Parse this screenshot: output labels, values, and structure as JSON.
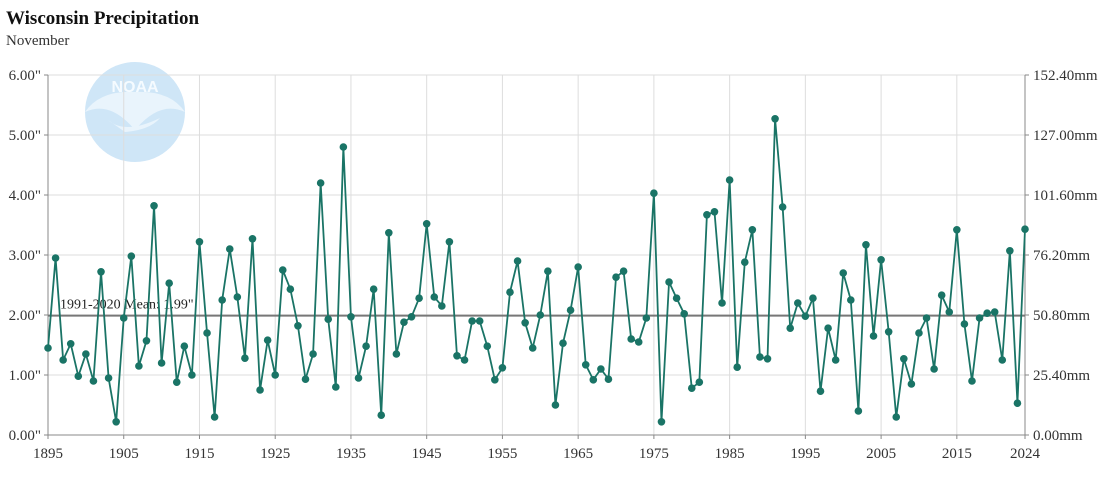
{
  "title": "Wisconsin Precipitation",
  "subtitle": "November",
  "colors": {
    "series": "#1a7466",
    "mean_line": "#777777",
    "grid": "#dddddd",
    "axis": "#888888",
    "logo_circle": "#cfe6f7",
    "logo_light": "#e9f4fc"
  },
  "logo": {
    "icon": "noaa-logo-icon",
    "text": "NOAA"
  },
  "chart_data": {
    "type": "line",
    "title": "Wisconsin Precipitation",
    "subtitle": "November",
    "x_range": [
      1895,
      2024
    ],
    "ylim": [
      0,
      6
    ],
    "grid": true,
    "left_axis": {
      "ticks": [
        0,
        1,
        2,
        3,
        4,
        5,
        6
      ],
      "tick_labels": [
        "0.00\"",
        "1.00\"",
        "2.00\"",
        "3.00\"",
        "4.00\"",
        "5.00\"",
        "6.00\""
      ]
    },
    "right_axis": {
      "tick_labels": [
        "0.00mm",
        "25.40mm",
        "50.80mm",
        "76.20mm",
        "101.60mm",
        "127.00mm",
        "152.40mm"
      ]
    },
    "x_ticks": [
      1895,
      1905,
      1915,
      1925,
      1935,
      1945,
      1955,
      1965,
      1975,
      1985,
      1995,
      2005,
      2015,
      2024
    ],
    "x_tick_labels": [
      "1895",
      "1905",
      "1915",
      "1925",
      "1935",
      "1945",
      "1955",
      "1965",
      "1975",
      "1985",
      "1995",
      "2005",
      "2015",
      "2024"
    ],
    "mean": {
      "value": 1.99,
      "label": "1991-2020 Mean: 1.99\""
    },
    "series": [
      {
        "x_start": 1895,
        "values": [
          1.45,
          2.95,
          1.25,
          1.52,
          0.98,
          1.35,
          0.9,
          2.72,
          0.95,
          0.22,
          1.95,
          2.98,
          1.15,
          1.57,
          3.82,
          1.2,
          2.53,
          0.88,
          1.48,
          1.0,
          3.22,
          1.7,
          0.3,
          2.25,
          3.1,
          2.3,
          1.28,
          3.27,
          0.75,
          1.58,
          1.0,
          2.75,
          2.43,
          1.82,
          0.93,
          1.35,
          4.2,
          1.93,
          0.8,
          4.8,
          1.97,
          0.95,
          1.48,
          2.43,
          0.33,
          3.37,
          1.35,
          1.88,
          1.97,
          2.28,
          3.52,
          2.3,
          2.15,
          3.22,
          1.32,
          1.25,
          1.9,
          1.9,
          1.48,
          0.92,
          1.12,
          2.38,
          2.9,
          1.87,
          1.45,
          2.0,
          2.73,
          0.5,
          1.53,
          2.08,
          2.8,
          1.17,
          0.92,
          1.1,
          0.93,
          2.63,
          2.73,
          1.6,
          1.55,
          1.95,
          4.03,
          0.22,
          2.55,
          2.28,
          2.02,
          0.78,
          0.88,
          3.67,
          3.72,
          2.2,
          4.25,
          1.13,
          2.88,
          3.42,
          1.3,
          1.27,
          5.27,
          3.8,
          1.78,
          2.2,
          1.98,
          2.28,
          0.73,
          1.78,
          1.25,
          2.7,
          2.25,
          0.4,
          3.17,
          1.65,
          2.92,
          1.72,
          0.3,
          1.27,
          0.85,
          1.7,
          1.95,
          1.1,
          2.33,
          2.05,
          3.42,
          1.85,
          0.9,
          1.95,
          2.03,
          2.05,
          1.25,
          3.07,
          0.53,
          3.43
        ]
      }
    ]
  }
}
